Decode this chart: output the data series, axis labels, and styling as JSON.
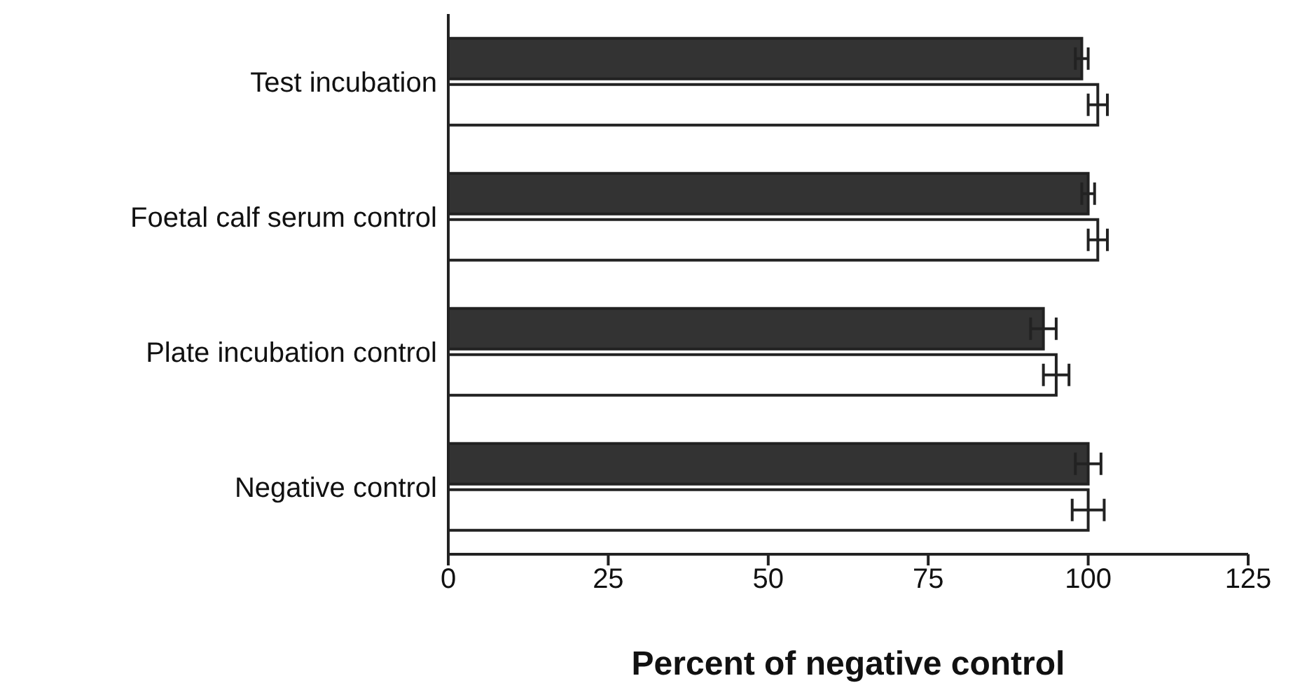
{
  "chart_data": {
    "type": "bar",
    "orientation": "horizontal",
    "xlabel": "Percent of negative control",
    "categories": [
      "Test incubation",
      "Foetal calf serum control",
      "Plate incubation control",
      "Negative control"
    ],
    "series": [
      {
        "color": "#333333",
        "values": [
          99,
          100,
          93,
          100
        ],
        "errors": [
          1,
          1,
          2,
          2
        ]
      },
      {
        "color": "#ffffff",
        "values": [
          101.5,
          101.5,
          95,
          100
        ],
        "errors": [
          1.5,
          1.5,
          2,
          2.5
        ]
      }
    ],
    "xlim": [
      0,
      125
    ],
    "xticks": [
      0,
      25,
      50,
      75,
      100,
      125
    ],
    "grid": false,
    "legend": false
  }
}
